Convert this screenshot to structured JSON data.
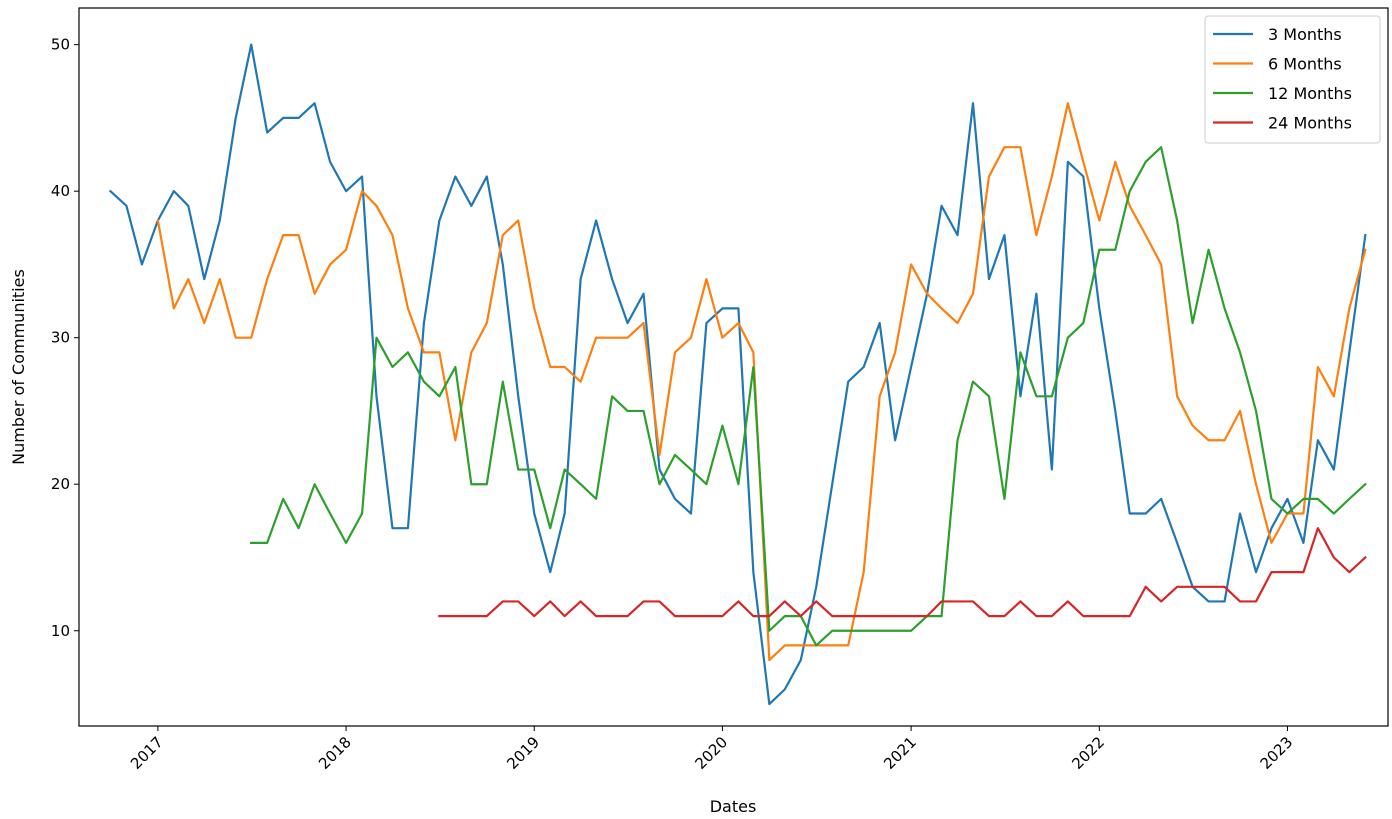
{
  "chart_data": {
    "type": "line",
    "title": "",
    "xlabel": "Dates",
    "ylabel": "Number of Communities",
    "x_ticks": [
      "2017",
      "2018",
      "2019",
      "2020",
      "2021",
      "2022",
      "2023"
    ],
    "y_ticks": [
      10,
      20,
      30,
      40,
      50
    ],
    "ylim": [
      3.5,
      52.5
    ],
    "xlim": [
      "2016-08-01",
      "2023-07-15"
    ],
    "grid": false,
    "legend": "top-right",
    "series": [
      {
        "name": "3 Months",
        "color": "#1f77b4",
        "points": [
          [
            "2016-10",
            40
          ],
          [
            "2016-11",
            39
          ],
          [
            "2016-12",
            35
          ],
          [
            "2017-01",
            38
          ],
          [
            "2017-02",
            40
          ],
          [
            "2017-03",
            39
          ],
          [
            "2017-04",
            34
          ],
          [
            "2017-05",
            38
          ],
          [
            "2017-06",
            45
          ],
          [
            "2017-07",
            50
          ],
          [
            "2017-08",
            44
          ],
          [
            "2017-09",
            45
          ],
          [
            "2017-10",
            45
          ],
          [
            "2017-11",
            46
          ],
          [
            "2017-12",
            42
          ],
          [
            "2018-01",
            40
          ],
          [
            "2018-02",
            41
          ],
          [
            "2018-03",
            26
          ],
          [
            "2018-04",
            17
          ],
          [
            "2018-05",
            17
          ],
          [
            "2018-06",
            31
          ],
          [
            "2018-07",
            38
          ],
          [
            "2018-08",
            41
          ],
          [
            "2018-09",
            39
          ],
          [
            "2018-10",
            41
          ],
          [
            "2018-11",
            35
          ],
          [
            "2018-12",
            26
          ],
          [
            "2019-01",
            18
          ],
          [
            "2019-02",
            14
          ],
          [
            "2019-03",
            18
          ],
          [
            "2019-04",
            34
          ],
          [
            "2019-05",
            38
          ],
          [
            "2019-06",
            34
          ],
          [
            "2019-07",
            31
          ],
          [
            "2019-08",
            33
          ],
          [
            "2019-09",
            21
          ],
          [
            "2019-10",
            19
          ],
          [
            "2019-11",
            18
          ],
          [
            "2019-12",
            31
          ],
          [
            "2020-01",
            32
          ],
          [
            "2020-02",
            32
          ],
          [
            "2020-03",
            14
          ],
          [
            "2020-04",
            5
          ],
          [
            "2020-05",
            6
          ],
          [
            "2020-06",
            8
          ],
          [
            "2020-07",
            13
          ],
          [
            "2020-08",
            20
          ],
          [
            "2020-09",
            27
          ],
          [
            "2020-10",
            28
          ],
          [
            "2020-11",
            31
          ],
          [
            "2020-12",
            23
          ],
          [
            "2021-01",
            28
          ],
          [
            "2021-02",
            33
          ],
          [
            "2021-03",
            39
          ],
          [
            "2021-04",
            37
          ],
          [
            "2021-05",
            46
          ],
          [
            "2021-06",
            34
          ],
          [
            "2021-07",
            37
          ],
          [
            "2021-08",
            26
          ],
          [
            "2021-09",
            33
          ],
          [
            "2021-10",
            21
          ],
          [
            "2021-11",
            42
          ],
          [
            "2021-12",
            41
          ],
          [
            "2022-01",
            32
          ],
          [
            "2022-02",
            25
          ],
          [
            "2022-03",
            18
          ],
          [
            "2022-04",
            18
          ],
          [
            "2022-05",
            19
          ],
          [
            "2022-06",
            16
          ],
          [
            "2022-07",
            13
          ],
          [
            "2022-08",
            12
          ],
          [
            "2022-09",
            12
          ],
          [
            "2022-10",
            18
          ],
          [
            "2022-11",
            14
          ],
          [
            "2022-12",
            17
          ],
          [
            "2023-01",
            19
          ],
          [
            "2023-02",
            16
          ],
          [
            "2023-03",
            23
          ],
          [
            "2023-04",
            21
          ],
          [
            "2023-05",
            29
          ],
          [
            "2023-06",
            37
          ]
        ]
      },
      {
        "name": "6 Months",
        "color": "#ff7f0e",
        "points": [
          [
            "2017-01",
            38
          ],
          [
            "2017-02",
            32
          ],
          [
            "2017-03",
            34
          ],
          [
            "2017-04",
            31
          ],
          [
            "2017-05",
            34
          ],
          [
            "2017-06",
            30
          ],
          [
            "2017-07",
            30
          ],
          [
            "2017-08",
            34
          ],
          [
            "2017-09",
            37
          ],
          [
            "2017-10",
            37
          ],
          [
            "2017-11",
            33
          ],
          [
            "2017-12",
            35
          ],
          [
            "2018-01",
            36
          ],
          [
            "2018-02",
            40
          ],
          [
            "2018-03",
            39
          ],
          [
            "2018-04",
            37
          ],
          [
            "2018-05",
            32
          ],
          [
            "2018-06",
            29
          ],
          [
            "2018-07",
            29
          ],
          [
            "2018-08",
            23
          ],
          [
            "2018-09",
            29
          ],
          [
            "2018-10",
            31
          ],
          [
            "2018-11",
            37
          ],
          [
            "2018-12",
            38
          ],
          [
            "2019-01",
            32
          ],
          [
            "2019-02",
            28
          ],
          [
            "2019-03",
            28
          ],
          [
            "2019-04",
            27
          ],
          [
            "2019-05",
            30
          ],
          [
            "2019-06",
            30
          ],
          [
            "2019-07",
            30
          ],
          [
            "2019-08",
            31
          ],
          [
            "2019-09",
            22
          ],
          [
            "2019-10",
            29
          ],
          [
            "2019-11",
            30
          ],
          [
            "2019-12",
            34
          ],
          [
            "2020-01",
            30
          ],
          [
            "2020-02",
            31
          ],
          [
            "2020-03",
            29
          ],
          [
            "2020-04",
            8
          ],
          [
            "2020-05",
            9
          ],
          [
            "2020-06",
            9
          ],
          [
            "2020-07",
            9
          ],
          [
            "2020-08",
            9
          ],
          [
            "2020-09",
            9
          ],
          [
            "2020-10",
            14
          ],
          [
            "2020-11",
            26
          ],
          [
            "2020-12",
            29
          ],
          [
            "2021-01",
            35
          ],
          [
            "2021-02",
            33
          ],
          [
            "2021-03",
            32
          ],
          [
            "2021-04",
            31
          ],
          [
            "2021-05",
            33
          ],
          [
            "2021-06",
            41
          ],
          [
            "2021-07",
            43
          ],
          [
            "2021-08",
            43
          ],
          [
            "2021-09",
            37
          ],
          [
            "2021-10",
            41
          ],
          [
            "2021-11",
            46
          ],
          [
            "2021-12",
            42
          ],
          [
            "2022-01",
            38
          ],
          [
            "2022-02",
            42
          ],
          [
            "2022-03",
            39
          ],
          [
            "2022-04",
            37
          ],
          [
            "2022-05",
            35
          ],
          [
            "2022-06",
            26
          ],
          [
            "2022-07",
            24
          ],
          [
            "2022-08",
            23
          ],
          [
            "2022-09",
            23
          ],
          [
            "2022-10",
            25
          ],
          [
            "2022-11",
            20
          ],
          [
            "2022-12",
            16
          ],
          [
            "2023-01",
            18
          ],
          [
            "2023-02",
            18
          ],
          [
            "2023-03",
            28
          ],
          [
            "2023-04",
            26
          ],
          [
            "2023-05",
            32
          ],
          [
            "2023-06",
            36
          ]
        ]
      },
      {
        "name": "12 Months",
        "color": "#2ca02c",
        "points": [
          [
            "2017-07",
            16
          ],
          [
            "2017-08",
            16
          ],
          [
            "2017-09",
            19
          ],
          [
            "2017-10",
            17
          ],
          [
            "2017-11",
            20
          ],
          [
            "2017-12",
            18
          ],
          [
            "2018-01",
            16
          ],
          [
            "2018-02",
            18
          ],
          [
            "2018-03",
            30
          ],
          [
            "2018-04",
            28
          ],
          [
            "2018-05",
            29
          ],
          [
            "2018-06",
            27
          ],
          [
            "2018-07",
            26
          ],
          [
            "2018-08",
            28
          ],
          [
            "2018-09",
            20
          ],
          [
            "2018-10",
            20
          ],
          [
            "2018-11",
            27
          ],
          [
            "2018-12",
            21
          ],
          [
            "2019-01",
            21
          ],
          [
            "2019-02",
            17
          ],
          [
            "2019-03",
            21
          ],
          [
            "2019-04",
            20
          ],
          [
            "2019-05",
            19
          ],
          [
            "2019-06",
            26
          ],
          [
            "2019-07",
            25
          ],
          [
            "2019-08",
            25
          ],
          [
            "2019-09",
            20
          ],
          [
            "2019-10",
            22
          ],
          [
            "2019-11",
            21
          ],
          [
            "2019-12",
            20
          ],
          [
            "2020-01",
            24
          ],
          [
            "2020-02",
            20
          ],
          [
            "2020-03",
            28
          ],
          [
            "2020-04",
            10
          ],
          [
            "2020-05",
            11
          ],
          [
            "2020-06",
            11
          ],
          [
            "2020-07",
            9
          ],
          [
            "2020-08",
            10
          ],
          [
            "2020-09",
            10
          ],
          [
            "2020-10",
            10
          ],
          [
            "2020-11",
            10
          ],
          [
            "2020-12",
            10
          ],
          [
            "2021-01",
            10
          ],
          [
            "2021-02",
            11
          ],
          [
            "2021-03",
            11
          ],
          [
            "2021-04",
            23
          ],
          [
            "2021-05",
            27
          ],
          [
            "2021-06",
            26
          ],
          [
            "2021-07",
            19
          ],
          [
            "2021-08",
            29
          ],
          [
            "2021-09",
            26
          ],
          [
            "2021-10",
            26
          ],
          [
            "2021-11",
            30
          ],
          [
            "2021-12",
            31
          ],
          [
            "2022-01",
            36
          ],
          [
            "2022-02",
            36
          ],
          [
            "2022-03",
            40
          ],
          [
            "2022-04",
            42
          ],
          [
            "2022-05",
            43
          ],
          [
            "2022-06",
            38
          ],
          [
            "2022-07",
            31
          ],
          [
            "2022-08",
            36
          ],
          [
            "2022-09",
            32
          ],
          [
            "2022-10",
            29
          ],
          [
            "2022-11",
            25
          ],
          [
            "2022-12",
            19
          ],
          [
            "2023-01",
            18
          ],
          [
            "2023-02",
            19
          ],
          [
            "2023-03",
            19
          ],
          [
            "2023-04",
            18
          ],
          [
            "2023-05",
            19
          ],
          [
            "2023-06",
            20
          ]
        ]
      },
      {
        "name": "24 Months",
        "color": "#d62728",
        "points": [
          [
            "2018-07",
            11
          ],
          [
            "2018-08",
            11
          ],
          [
            "2018-09",
            11
          ],
          [
            "2018-10",
            11
          ],
          [
            "2018-11",
            12
          ],
          [
            "2018-12",
            12
          ],
          [
            "2019-01",
            11
          ],
          [
            "2019-02",
            12
          ],
          [
            "2019-03",
            11
          ],
          [
            "2019-04",
            12
          ],
          [
            "2019-05",
            11
          ],
          [
            "2019-06",
            11
          ],
          [
            "2019-07",
            11
          ],
          [
            "2019-08",
            12
          ],
          [
            "2019-09",
            12
          ],
          [
            "2019-10",
            11
          ],
          [
            "2019-11",
            11
          ],
          [
            "2019-12",
            11
          ],
          [
            "2020-01",
            11
          ],
          [
            "2020-02",
            12
          ],
          [
            "2020-03",
            11
          ],
          [
            "2020-04",
            11
          ],
          [
            "2020-05",
            12
          ],
          [
            "2020-06",
            11
          ],
          [
            "2020-07",
            12
          ],
          [
            "2020-08",
            11
          ],
          [
            "2020-09",
            11
          ],
          [
            "2020-10",
            11
          ],
          [
            "2020-11",
            11
          ],
          [
            "2020-12",
            11
          ],
          [
            "2021-01",
            11
          ],
          [
            "2021-02",
            11
          ],
          [
            "2021-03",
            12
          ],
          [
            "2021-04",
            12
          ],
          [
            "2021-05",
            12
          ],
          [
            "2021-06",
            11
          ],
          [
            "2021-07",
            11
          ],
          [
            "2021-08",
            12
          ],
          [
            "2021-09",
            11
          ],
          [
            "2021-10",
            11
          ],
          [
            "2021-11",
            12
          ],
          [
            "2021-12",
            11
          ],
          [
            "2022-01",
            11
          ],
          [
            "2022-02",
            11
          ],
          [
            "2022-03",
            11
          ],
          [
            "2022-04",
            13
          ],
          [
            "2022-05",
            12
          ],
          [
            "2022-06",
            13
          ],
          [
            "2022-07",
            13
          ],
          [
            "2022-08",
            13
          ],
          [
            "2022-09",
            13
          ],
          [
            "2022-10",
            12
          ],
          [
            "2022-11",
            12
          ],
          [
            "2022-12",
            14
          ],
          [
            "2023-01",
            14
          ],
          [
            "2023-02",
            14
          ],
          [
            "2023-03",
            17
          ],
          [
            "2023-04",
            15
          ],
          [
            "2023-05",
            14
          ],
          [
            "2023-06",
            15
          ]
        ]
      }
    ]
  }
}
